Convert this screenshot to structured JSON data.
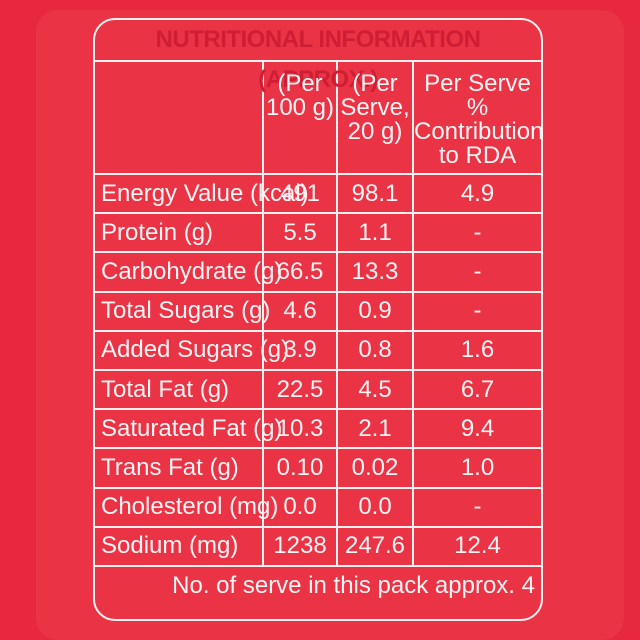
{
  "title": "NUTRITIONAL INFORMATION (APPROX.)",
  "headers": {
    "per100": [
      "(Per",
      "100 g)"
    ],
    "perServe": [
      "(Per",
      "Serve,",
      "20 g)"
    ],
    "rda": [
      "Per Serve",
      "% Contribution",
      "to RDA"
    ]
  },
  "rows": [
    {
      "label": "Energy Value (kcal)",
      "per100": "491",
      "perServe": "98.1",
      "rda": "4.9"
    },
    {
      "label": "Protein (g)",
      "per100": "5.5",
      "perServe": "1.1",
      "rda": "-"
    },
    {
      "label": "Carbohydrate (g)",
      "per100": "66.5",
      "perServe": "13.3",
      "rda": "-"
    },
    {
      "label": "Total Sugars (g)",
      "per100": "4.6",
      "perServe": "0.9",
      "rda": "-"
    },
    {
      "label": "Added Sugars (g)",
      "per100": "3.9",
      "perServe": "0.8",
      "rda": "1.6"
    },
    {
      "label": "Total Fat (g)",
      "per100": "22.5",
      "perServe": "4.5",
      "rda": "6.7"
    },
    {
      "label": "Saturated Fat (g)",
      "per100": "10.3",
      "perServe": "2.1",
      "rda": "9.4"
    },
    {
      "label": "Trans Fat (g)",
      "per100": "0.10",
      "perServe": "0.02",
      "rda": "1.0"
    },
    {
      "label": "Cholesterol (mg)",
      "per100": "0.0",
      "perServe": "0.0",
      "rda": "-"
    },
    {
      "label": "Sodium (mg)",
      "per100": "1238",
      "perServe": "247.6",
      "rda": "12.4"
    }
  ],
  "footer": "No. of serve in this pack approx. 4",
  "colors": {
    "background": "#e8283e",
    "lines": "#fdf0f1",
    "title_text": "#cf1e33"
  }
}
